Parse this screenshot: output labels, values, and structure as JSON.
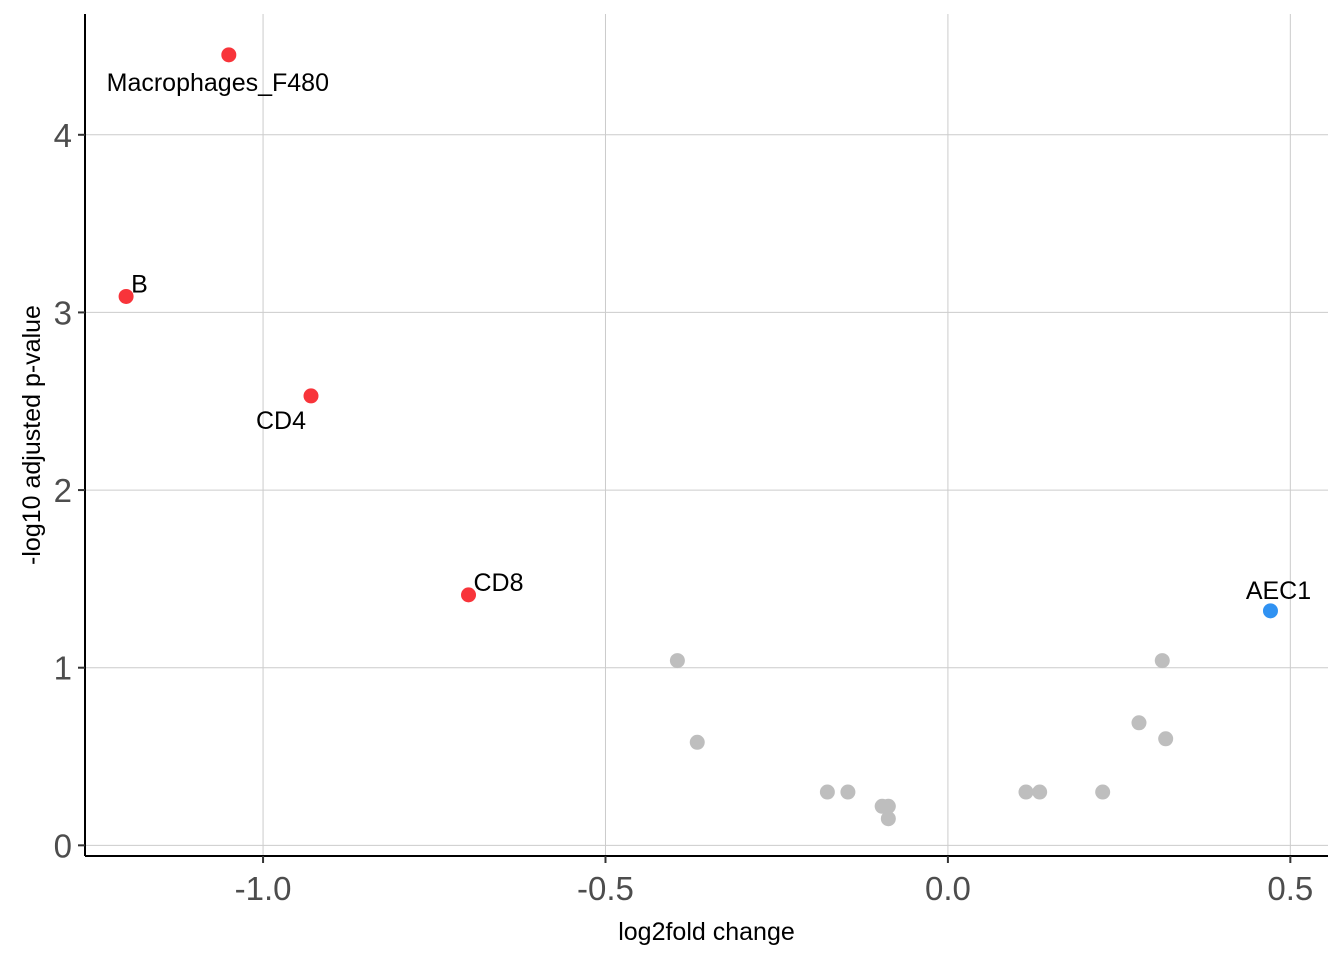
{
  "chart_data": {
    "type": "scatter",
    "title": "",
    "xlabel": "log2fold change",
    "ylabel": "-log10 adjusted p-value",
    "xlim": [
      -1.26,
      0.555
    ],
    "ylim": [
      -0.06,
      4.68
    ],
    "x_ticks": [
      -1.0,
      -0.5,
      0.0,
      0.5
    ],
    "x_tick_labels": [
      "-1.0",
      "-0.5",
      "0.0",
      "0.5"
    ],
    "y_ticks": [
      0,
      1,
      2,
      3,
      4
    ],
    "y_tick_labels": [
      "0",
      "1",
      "2",
      "3",
      "4"
    ],
    "grid": true,
    "legend": "none",
    "colors": {
      "down": "#f8343a",
      "up": "#3092f2",
      "ns": "#bebebe"
    },
    "points": [
      {
        "x": -1.05,
        "y": 4.45,
        "group": "down",
        "label": "Macrophages_F480",
        "label_pos": "below"
      },
      {
        "x": -1.2,
        "y": 3.09,
        "group": "down",
        "label": "B",
        "label_pos": "upper-right"
      },
      {
        "x": -0.93,
        "y": 2.53,
        "group": "down",
        "label": "CD4",
        "label_pos": "lower-left"
      },
      {
        "x": -0.7,
        "y": 1.41,
        "group": "down",
        "label": "CD8",
        "label_pos": "upper-right"
      },
      {
        "x": 0.471,
        "y": 1.32,
        "group": "up",
        "label": "AEC1",
        "label_pos": "above"
      },
      {
        "x": -0.395,
        "y": 1.04,
        "group": "ns"
      },
      {
        "x": -0.366,
        "y": 0.58,
        "group": "ns"
      },
      {
        "x": -0.176,
        "y": 0.3,
        "group": "ns"
      },
      {
        "x": -0.146,
        "y": 0.3,
        "group": "ns"
      },
      {
        "x": -0.096,
        "y": 0.22,
        "group": "ns"
      },
      {
        "x": -0.087,
        "y": 0.22,
        "group": "ns"
      },
      {
        "x": -0.087,
        "y": 0.15,
        "group": "ns"
      },
      {
        "x": 0.114,
        "y": 0.3,
        "group": "ns"
      },
      {
        "x": 0.134,
        "y": 0.3,
        "group": "ns"
      },
      {
        "x": 0.226,
        "y": 0.3,
        "group": "ns"
      },
      {
        "x": 0.279,
        "y": 0.69,
        "group": "ns"
      },
      {
        "x": 0.313,
        "y": 1.04,
        "group": "ns"
      },
      {
        "x": 0.318,
        "y": 0.6,
        "group": "ns"
      }
    ]
  }
}
